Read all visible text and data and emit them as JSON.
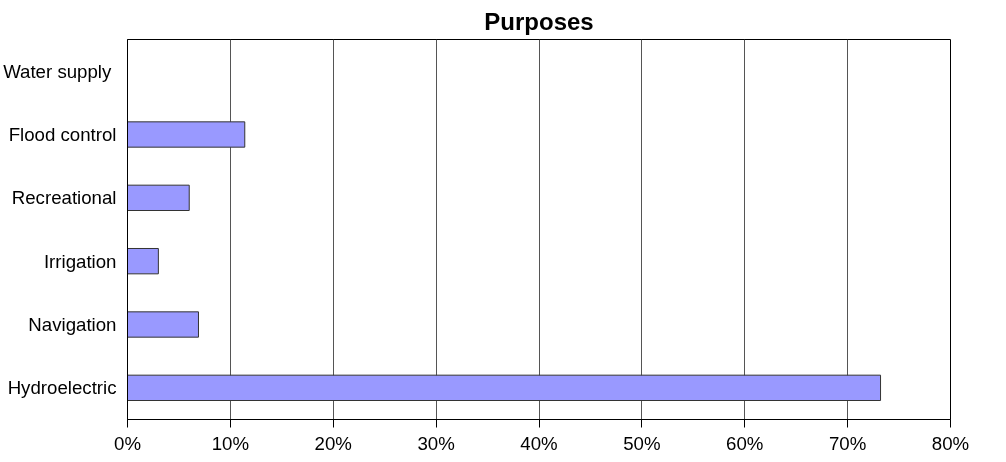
{
  "chart_data": {
    "type": "bar",
    "orientation": "horizontal",
    "title": "Purposes",
    "categories": [
      "Water  supply",
      "Flood control",
      "Recreational",
      "Irrigation",
      "Navigation",
      "Hydroelectric"
    ],
    "values": [
      null,
      11.4,
      6.0,
      3.0,
      6.9,
      73.2
    ],
    "color": "#9999ff",
    "xlim": [
      0,
      80
    ],
    "xticks": [
      {
        "value": 0,
        "label": "0%"
      },
      {
        "value": 10,
        "label": "10%"
      },
      {
        "value": 20,
        "label": "20%"
      },
      {
        "value": 30,
        "label": "30%"
      },
      {
        "value": 40,
        "label": "40%"
      },
      {
        "value": 50,
        "label": "50%"
      },
      {
        "value": 60,
        "label": "60%"
      },
      {
        "value": 70,
        "label": "70%"
      },
      {
        "value": 80,
        "label": "80%"
      }
    ],
    "grid": "x"
  }
}
